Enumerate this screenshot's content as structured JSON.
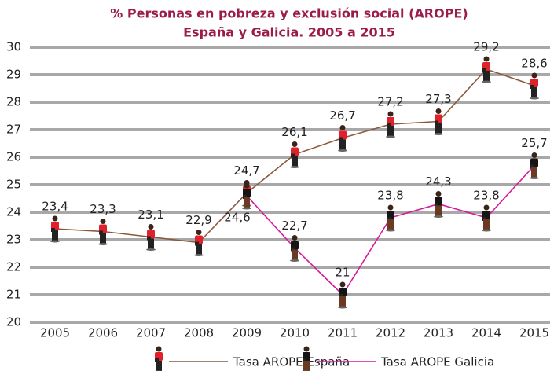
{
  "chart_data": {
    "type": "line",
    "title": "% Personas en pobreza y exclusión social (AROPE)",
    "subtitle": "España y Galicia. 2005 a 2015",
    "categories": [
      "2005",
      "2006",
      "2007",
      "2008",
      "2009",
      "2010",
      "2011",
      "2012",
      "2013",
      "2014",
      "2015"
    ],
    "series": [
      {
        "name": "Tasa AROPE España",
        "color": "#8b5a3c",
        "values": [
          23.4,
          23.3,
          23.1,
          22.9,
          24.7,
          26.1,
          26.7,
          27.2,
          27.3,
          29.2,
          28.6
        ],
        "value_labels": [
          "23,4",
          "23,3",
          "23,1",
          "22,9",
          "24,7",
          "26,1",
          "26,7",
          "27,2",
          "27,3",
          "29,2",
          "28,6"
        ]
      },
      {
        "name": "Tasa AROPE Galicia",
        "color": "#d6199a",
        "values": [
          null,
          null,
          null,
          null,
          24.6,
          22.7,
          21,
          23.8,
          24.3,
          23.8,
          25.7
        ],
        "value_labels": [
          null,
          null,
          null,
          null,
          "24,6",
          "22,7",
          "21",
          "23,8",
          "24,3",
          "23,8",
          "25,7"
        ]
      }
    ],
    "ylim": [
      20,
      30
    ],
    "yticks": [
      20,
      21,
      22,
      23,
      24,
      25,
      26,
      27,
      28,
      29,
      30
    ],
    "grid": true
  }
}
